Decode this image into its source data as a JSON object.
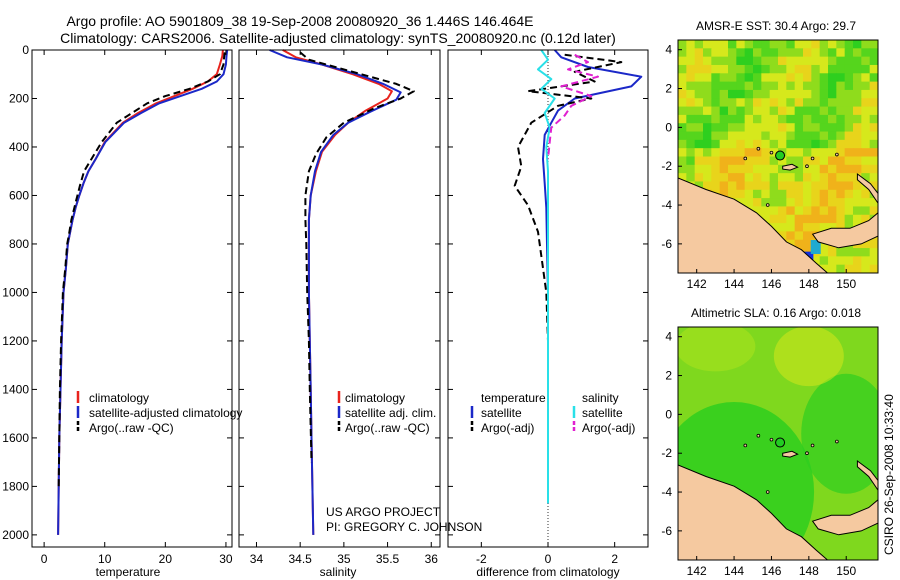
{
  "header": {
    "title_line1": "Argo profile: AO 5901809_38 19-Sep-2008 20080920_36 1.446S 146.464E",
    "title_line2": "Climatology: CARS2006. Satellite-adjusted climatology: synTS_20080920.nc (0.12d later)"
  },
  "footer": {
    "project": "US ARGO PROJECT",
    "pi": "PI: GREGORY C. JOHNSON",
    "stamp": "CSIRO 26-Sep-2008 10:33:40"
  },
  "colors": {
    "climatology": "#e8231d",
    "satellite": "#1b28c8",
    "argo": "#000000",
    "salinity_satellite": "#29e0e8",
    "salinity_argo": "#e020d0",
    "land": "#f5c9a0",
    "ocean_green": "#2ecf1f",
    "ocean_yellow": "#d6e81c",
    "ocean_orange": "#f0b21a",
    "ocean_blue": "#1230e0",
    "marker": "#22cc22"
  },
  "chart_data": [
    {
      "type": "line",
      "name": "temperature-profile",
      "xlabel": "temperature",
      "ylabel": "",
      "xlim": [
        -2,
        31
      ],
      "ylim": [
        2050,
        0
      ],
      "xticks": [
        0,
        10,
        20,
        30
      ],
      "yticks": [
        0,
        200,
        400,
        600,
        800,
        1000,
        1200,
        1400,
        1600,
        1800,
        2000
      ],
      "legend": {
        "placement": "lower-right",
        "entries": [
          "climatology",
          "satellite-adjusted climatology",
          "Argo(..raw -QC)"
        ]
      },
      "series": [
        {
          "name": "climatology",
          "style": "solid",
          "color_key": "climatology",
          "x": [
            29.5,
            29.4,
            29.0,
            28.5,
            27.0,
            24.5,
            21.5,
            18.5,
            15.5,
            13.0,
            10.0,
            8.5,
            7.3,
            6.5,
            5.8,
            5.2,
            4.7,
            4.3,
            3.9,
            3.6,
            3.2,
            2.9,
            2.7,
            2.5,
            2.4,
            2.3
          ],
          "y": [
            0,
            25,
            60,
            100,
            130,
            160,
            190,
            220,
            260,
            300,
            380,
            450,
            500,
            550,
            600,
            650,
            700,
            750,
            800,
            900,
            1000,
            1200,
            1400,
            1600,
            1800,
            2000
          ]
        },
        {
          "name": "satellite-adjusted climatology",
          "style": "solid",
          "color_key": "satellite",
          "x": [
            30.2,
            30.1,
            30.0,
            29.6,
            28.5,
            26.0,
            22.5,
            19.0,
            16.0,
            13.2,
            10.1,
            8.5,
            7.3,
            6.5,
            5.8,
            5.2,
            4.7,
            4.3,
            3.9,
            3.6,
            3.2,
            2.9,
            2.7,
            2.5,
            2.4,
            2.3
          ],
          "y": [
            0,
            25,
            60,
            100,
            130,
            160,
            190,
            220,
            260,
            300,
            380,
            450,
            500,
            550,
            600,
            650,
            700,
            750,
            800,
            900,
            1000,
            1200,
            1400,
            1600,
            1800,
            2000
          ]
        },
        {
          "name": "Argo(..raw -QC)",
          "style": "dashed",
          "color_key": "argo",
          "x": [
            29.8,
            29.7,
            29.6,
            29.0,
            27.0,
            24.0,
            20.0,
            17.0,
            14.5,
            12.0,
            9.5,
            7.8,
            6.6,
            5.9,
            5.3,
            4.9,
            4.5,
            4.1,
            3.8,
            3.5,
            3.1,
            2.8,
            2.6,
            2.5,
            2.4
          ],
          "y": [
            10,
            30,
            60,
            100,
            130,
            160,
            190,
            220,
            260,
            300,
            380,
            450,
            500,
            560,
            620,
            660,
            700,
            760,
            800,
            900,
            1000,
            1200,
            1400,
            1600,
            1800
          ]
        }
      ]
    },
    {
      "type": "line",
      "name": "salinity-profile",
      "xlabel": "salinity",
      "ylabel": "",
      "xlim": [
        33.8,
        36.1
      ],
      "ylim": [
        2050,
        0
      ],
      "xticks": [
        34,
        34.5,
        35,
        35.5,
        36
      ],
      "legend": {
        "placement": "lower-right",
        "entries": [
          "climatology",
          "satellite adj. clim.",
          "Argo(..raw -QC)"
        ]
      },
      "series": [
        {
          "name": "climatology",
          "style": "solid",
          "color_key": "climatology",
          "x": [
            34.3,
            34.45,
            34.75,
            35.1,
            35.4,
            35.55,
            35.5,
            35.25,
            35.05,
            34.9,
            34.75,
            34.68,
            34.62,
            34.6,
            34.6,
            34.6,
            34.61,
            34.62,
            34.63,
            34.64,
            34.65
          ],
          "y": [
            0,
            30,
            60,
            100,
            140,
            170,
            200,
            250,
            300,
            350,
            420,
            500,
            600,
            700,
            800,
            1000,
            1200,
            1400,
            1600,
            1800,
            2000
          ]
        },
        {
          "name": "satellite adj. clim.",
          "style": "solid",
          "color_key": "satellite",
          "x": [
            34.15,
            34.35,
            34.75,
            35.15,
            35.45,
            35.65,
            35.6,
            35.3,
            35.05,
            34.88,
            34.74,
            34.67,
            34.62,
            34.6,
            34.6,
            34.6,
            34.61,
            34.62,
            34.63,
            34.64,
            34.65
          ],
          "y": [
            0,
            30,
            60,
            100,
            140,
            175,
            205,
            255,
            300,
            350,
            420,
            500,
            600,
            700,
            800,
            1000,
            1200,
            1400,
            1600,
            1800,
            2000
          ]
        },
        {
          "name": "Argo(..raw -QC)",
          "style": "dashed",
          "color_key": "argo",
          "x": [
            34.5,
            34.6,
            34.9,
            35.3,
            35.6,
            35.8,
            35.65,
            35.35,
            35.0,
            34.8,
            34.68,
            34.6,
            34.56,
            34.56,
            34.57,
            34.58,
            34.6,
            34.61,
            34.63
          ],
          "y": [
            10,
            40,
            70,
            110,
            140,
            170,
            200,
            240,
            300,
            360,
            430,
            500,
            600,
            700,
            800,
            1000,
            1200,
            1400,
            1700
          ]
        }
      ]
    },
    {
      "type": "line",
      "name": "difference-profile",
      "xlabel": "difference from climatology",
      "ylabel": "",
      "xlim": [
        -3,
        3
      ],
      "ylim": [
        2050,
        0
      ],
      "xticks": [
        -2,
        0,
        2
      ],
      "legend": {
        "placement": "lower-right",
        "groups": [
          {
            "header": "temperature",
            "entries": [
              "satellite",
              "Argo(-adj)"
            ]
          },
          {
            "header": "salinity",
            "entries": [
              "satellite",
              "Argo(-adj)"
            ]
          }
        ]
      },
      "series": [
        {
          "name": "temperature satellite",
          "style": "solid",
          "color_key": "satellite",
          "x": [
            0.2,
            0.4,
            1.2,
            2.8,
            2.5,
            0.8,
            0.3,
            0.1,
            -0.1,
            -0.15,
            -0.1,
            -0.05,
            -0.03,
            0.0,
            0.0,
            0.0,
            0.0,
            0.0,
            0.0
          ],
          "y": [
            0,
            30,
            70,
            110,
            150,
            200,
            250,
            300,
            350,
            450,
            550,
            650,
            800,
            1000,
            1200,
            1400,
            1600,
            1800,
            1870
          ]
        },
        {
          "name": "temperature Argo(-adj)",
          "style": "dashed",
          "color_key": "argo",
          "x": [
            0.5,
            2.2,
            0.8,
            1.4,
            -0.6,
            1.3,
            0.3,
            -0.5,
            -0.9,
            -0.8,
            -1.0,
            -0.6,
            -0.3,
            -0.15,
            -0.05,
            0.0,
            0.0,
            0.0,
            0.0
          ],
          "y": [
            20,
            50,
            90,
            130,
            170,
            200,
            230,
            300,
            400,
            480,
            560,
            640,
            750,
            900,
            1000,
            1200,
            1400,
            1600,
            1800
          ]
        },
        {
          "name": "salinity satellite",
          "style": "solid",
          "color_key": "salinity_satellite",
          "x": [
            -0.2,
            0.0,
            -0.3,
            0.1,
            -0.2,
            0.2,
            -0.1,
            0.05,
            -0.05,
            0.0,
            0.0,
            0.0,
            0.0,
            0.0,
            0.0
          ],
          "y": [
            0,
            40,
            80,
            120,
            160,
            200,
            260,
            320,
            400,
            500,
            700,
            1000,
            1300,
            1600,
            1870
          ]
        },
        {
          "name": "salinity Argo(-adj)",
          "style": "dashed",
          "color_key": "salinity_argo",
          "x": [
            0.8,
            1.2,
            0.6,
            1.5,
            0.4,
            1.3,
            0.7,
            0.5,
            0.1,
            0.05,
            0.0
          ],
          "y": [
            20,
            50,
            80,
            110,
            150,
            190,
            230,
            270,
            320,
            380,
            450
          ]
        }
      ]
    },
    {
      "type": "heatmap",
      "name": "amsre-sst-map",
      "title": "AMSR-E SST: 30.4 Argo: 29.7",
      "xlim": [
        141,
        151.7
      ],
      "ylim": [
        -7.5,
        4.5
      ],
      "xticks": [
        142,
        144,
        146,
        148,
        150
      ],
      "yticks": [
        -6,
        -4,
        -2,
        0,
        2,
        4
      ],
      "marker": {
        "lon": 146.46,
        "lat": -1.45
      }
    },
    {
      "type": "heatmap",
      "name": "altimetric-sla-map",
      "title": "Altimetric SLA: 0.16 Argo: 0.018",
      "xlim": [
        141,
        151.7
      ],
      "ylim": [
        -7.5,
        4.5
      ],
      "xticks": [
        142,
        144,
        146,
        148,
        150
      ],
      "yticks": [
        -6,
        -4,
        -2,
        0,
        2,
        4
      ],
      "marker": {
        "lon": 146.46,
        "lat": -1.45
      }
    }
  ]
}
